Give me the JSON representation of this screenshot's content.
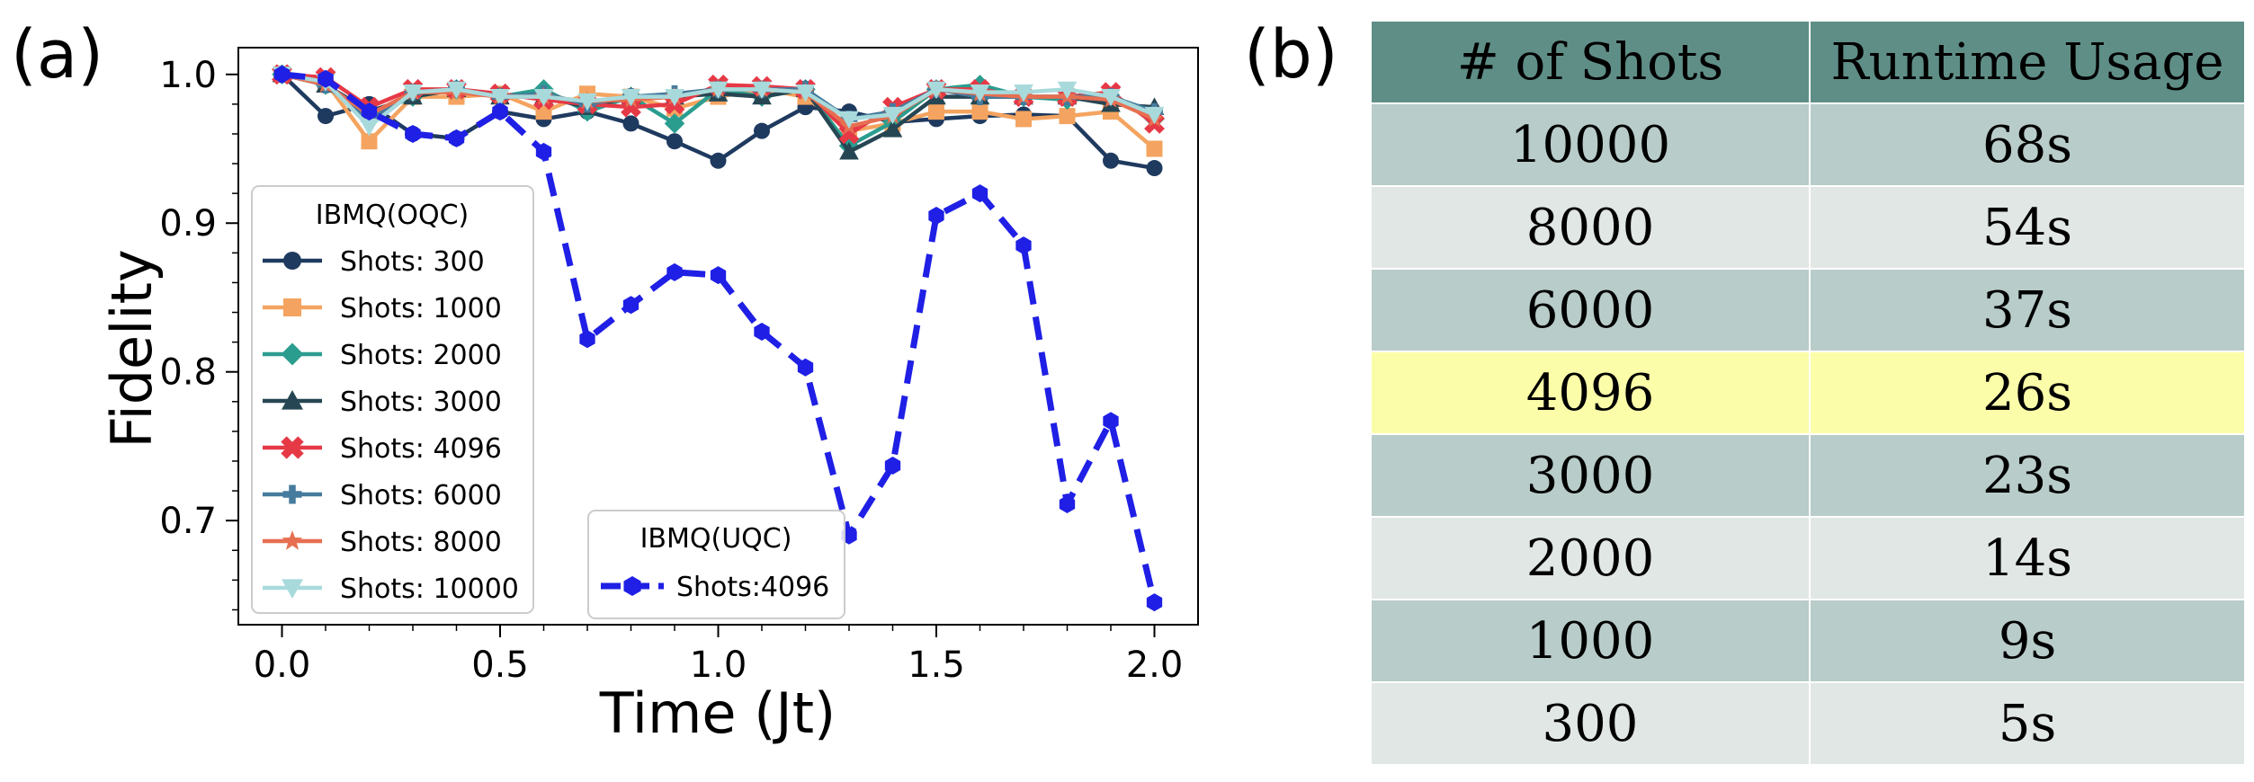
{
  "panels": {
    "a": "(a)",
    "b": "(b)"
  },
  "chart_data": {
    "type": "line",
    "xlabel": "Time (Jt)",
    "ylabel": "Fidelity",
    "xlim": [
      -0.1,
      2.1
    ],
    "ylim": [
      0.63,
      1.018
    ],
    "xticks": [
      0.0,
      0.5,
      1.0,
      1.5,
      2.0
    ],
    "xtick_labels": [
      "0.0",
      "0.5",
      "1.0",
      "1.5",
      "2.0"
    ],
    "yticks": [
      0.7,
      0.8,
      0.9,
      1.0
    ],
    "ytick_labels": [
      "0.7",
      "0.8",
      "0.9",
      "1.0"
    ],
    "x": [
      0.0,
      0.1,
      0.2,
      0.3,
      0.4,
      0.5,
      0.6,
      0.7,
      0.8,
      0.9,
      1.0,
      1.1,
      1.2,
      1.3,
      1.4,
      1.5,
      1.6,
      1.7,
      1.8,
      1.9,
      2.0
    ],
    "legend_oqc_title": "IBMQ(OQC)",
    "legend_uqc_title": "IBMQ(UQC)",
    "series": [
      {
        "name": "Shots: 300",
        "group": "OQC",
        "color": "#1f3a5f",
        "marker": "circle",
        "dashed": false,
        "values": [
          1.0,
          0.972,
          0.98,
          0.96,
          0.957,
          0.975,
          0.97,
          0.975,
          0.967,
          0.955,
          0.942,
          0.962,
          0.978,
          0.975,
          0.968,
          0.97,
          0.972,
          0.973,
          0.972,
          0.942,
          0.937
        ]
      },
      {
        "name": "Shots: 1000",
        "group": "OQC",
        "color": "#f4a460",
        "marker": "square",
        "dashed": false,
        "values": [
          1.0,
          0.995,
          0.955,
          0.985,
          0.985,
          0.987,
          0.975,
          0.987,
          0.985,
          0.977,
          0.985,
          0.99,
          0.985,
          0.962,
          0.967,
          0.975,
          0.975,
          0.97,
          0.972,
          0.975,
          0.95
        ]
      },
      {
        "name": "Shots: 2000",
        "group": "OQC",
        "color": "#2a9d8f",
        "marker": "diamond",
        "dashed": false,
        "values": [
          1.0,
          0.993,
          0.972,
          0.985,
          0.99,
          0.985,
          0.99,
          0.975,
          0.985,
          0.967,
          0.99,
          0.985,
          0.99,
          0.952,
          0.968,
          0.99,
          0.993,
          0.985,
          0.983,
          0.985,
          0.97
        ]
      },
      {
        "name": "Shots: 3000",
        "group": "OQC",
        "color": "#264653",
        "marker": "triangle-up",
        "dashed": false,
        "values": [
          1.0,
          0.993,
          0.975,
          0.985,
          0.99,
          0.985,
          0.985,
          0.978,
          0.985,
          0.985,
          0.987,
          0.985,
          0.99,
          0.948,
          0.963,
          0.985,
          0.985,
          0.985,
          0.985,
          0.98,
          0.978
        ]
      },
      {
        "name": "Shots: 4096",
        "group": "OQC",
        "color": "#e63946",
        "marker": "x",
        "dashed": false,
        "values": [
          1.0,
          0.998,
          0.978,
          0.99,
          0.99,
          0.987,
          0.983,
          0.98,
          0.978,
          0.98,
          0.993,
          0.992,
          0.99,
          0.96,
          0.978,
          0.99,
          0.99,
          0.985,
          0.985,
          0.988,
          0.967
        ]
      },
      {
        "name": "Shots: 6000",
        "group": "OQC",
        "color": "#457b9d",
        "marker": "plus",
        "dashed": false,
        "values": [
          1.0,
          0.993,
          0.97,
          0.988,
          0.99,
          0.985,
          0.987,
          0.98,
          0.985,
          0.987,
          0.99,
          0.99,
          0.99,
          0.97,
          0.975,
          0.99,
          0.985,
          0.985,
          0.985,
          0.985,
          0.975
        ]
      },
      {
        "name": "Shots: 8000",
        "group": "OQC",
        "color": "#e76f51",
        "marker": "star",
        "dashed": false,
        "values": [
          1.0,
          0.993,
          0.973,
          0.988,
          0.988,
          0.985,
          0.985,
          0.982,
          0.983,
          0.985,
          0.99,
          0.99,
          0.988,
          0.965,
          0.972,
          0.99,
          0.987,
          0.985,
          0.985,
          0.983,
          0.97
        ]
      },
      {
        "name": "Shots: 10000",
        "group": "OQC",
        "color": "#a8dadc",
        "marker": "triangle-down",
        "dashed": false,
        "values": [
          1.0,
          0.995,
          0.965,
          0.988,
          0.99,
          0.985,
          0.985,
          0.982,
          0.985,
          0.985,
          0.99,
          0.99,
          0.988,
          0.97,
          0.973,
          0.99,
          0.988,
          0.988,
          0.99,
          0.985,
          0.973
        ]
      },
      {
        "name": "Shots:4096",
        "group": "UQC",
        "color": "#1f1fe6",
        "marker": "hexagon",
        "dashed": true,
        "values": [
          1.0,
          0.997,
          0.975,
          0.96,
          0.957,
          0.975,
          0.948,
          0.822,
          0.845,
          0.867,
          0.865,
          0.827,
          0.803,
          0.69,
          0.737,
          0.905,
          0.92,
          0.885,
          0.711,
          0.767,
          0.645
        ]
      }
    ]
  },
  "table": {
    "headers": [
      "# of Shots",
      "Runtime Usage"
    ],
    "rows": [
      [
        "10000",
        "68s"
      ],
      [
        "8000",
        "54s"
      ],
      [
        "6000",
        "37s"
      ],
      [
        "4096",
        "26s"
      ],
      [
        "3000",
        "23s"
      ],
      [
        "2000",
        "14s"
      ],
      [
        "1000",
        "9s"
      ],
      [
        "300",
        "5s"
      ]
    ],
    "highlight_value": "4096",
    "colors": {
      "header": "#5f8e87",
      "odd": "#b8ccc9",
      "even": "#e1e7e5",
      "highlight": "#fcfda9"
    }
  }
}
